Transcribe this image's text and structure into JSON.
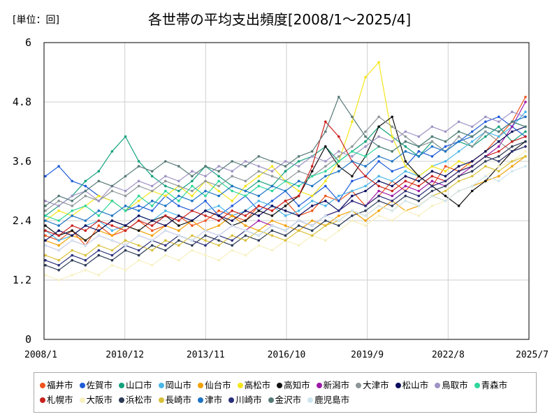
{
  "header": {
    "unit": "[単位：回]"
  },
  "chart_data": {
    "type": "line",
    "title": "各世帯の平均支出頻度[2008/1～2025/4]",
    "xlabel": "",
    "ylabel": "",
    "ylim": [
      0,
      6
    ],
    "yticks": [
      "0",
      "1.2",
      "2.4",
      "3.6",
      "4.8",
      "6"
    ],
    "xticks": [
      "2008/1",
      "2010/12",
      "2013/11",
      "2016/10",
      "2019/9",
      "2022/8",
      "2025/7"
    ],
    "x_start": "2008/1",
    "x_end": "2025/4",
    "grid": true,
    "legend_position": "bottom",
    "series": [
      {
        "name": "福井市",
        "color": "#f0541d",
        "values": [
          2.1,
          2.0,
          2.2,
          1.9,
          2.3,
          2.1,
          2.2,
          2.4,
          2.2,
          2.3,
          2.5,
          2.3,
          2.4,
          2.6,
          2.5,
          2.4,
          2.7,
          2.6,
          2.8,
          2.5,
          2.6,
          2.9,
          2.8,
          3.0,
          2.7,
          2.9,
          3.2,
          3.0,
          3.3,
          3.1,
          3.5,
          3.4,
          3.6,
          3.8,
          4.1,
          4.4,
          4.9
        ]
      },
      {
        "name": "佐賀市",
        "color": "#1f5bd8",
        "values": [
          3.3,
          3.5,
          3.2,
          3.1,
          2.9,
          2.8,
          2.6,
          2.7,
          2.6,
          2.9,
          2.7,
          2.6,
          2.8,
          2.5,
          2.7,
          2.9,
          2.6,
          2.8,
          3.0,
          2.7,
          2.9,
          3.1,
          2.8,
          3.2,
          3.3,
          3.6,
          3.4,
          3.5,
          3.8,
          3.7,
          3.9,
          4.0,
          4.2,
          4.4,
          4.5,
          4.3,
          4.1
        ]
      },
      {
        "name": "山口市",
        "color": "#14a17d",
        "values": [
          2.5,
          2.7,
          2.9,
          3.2,
          3.4,
          3.8,
          4.1,
          3.6,
          3.3,
          3.1,
          3.0,
          3.2,
          3.5,
          3.3,
          3.1,
          3.0,
          3.2,
          3.1,
          3.4,
          3.6,
          3.7,
          3.9,
          3.6,
          3.8,
          4.0,
          4.3,
          4.1,
          3.9,
          3.7,
          4.0,
          3.8,
          4.0,
          3.9,
          4.1,
          4.3,
          4.0,
          4.2
        ]
      },
      {
        "name": "岡山市",
        "color": "#4ab6e8",
        "values": [
          2.2,
          2.0,
          2.1,
          2.3,
          2.4,
          2.2,
          2.3,
          2.5,
          2.4,
          2.6,
          2.5,
          2.4,
          2.6,
          2.7,
          2.5,
          2.6,
          2.8,
          2.7,
          2.5,
          2.6,
          2.8,
          2.7,
          2.9,
          3.0,
          3.1,
          3.3,
          3.2,
          3.4,
          3.3,
          3.5,
          3.6,
          3.8,
          4.0,
          4.2,
          4.1,
          4.3,
          4.6
        ]
      },
      {
        "name": "仙台市",
        "color": "#f2a000",
        "values": [
          2.0,
          1.9,
          2.1,
          2.0,
          2.2,
          2.1,
          2.3,
          2.2,
          2.1,
          2.3,
          2.2,
          2.4,
          2.2,
          2.3,
          2.5,
          2.3,
          2.2,
          2.4,
          2.3,
          2.2,
          2.4,
          2.3,
          2.5,
          2.6,
          2.4,
          2.6,
          2.8,
          2.6,
          2.7,
          2.9,
          2.8,
          3.0,
          3.1,
          3.2,
          3.3,
          3.5,
          3.7
        ]
      },
      {
        "name": "高松市",
        "color": "#f5e51b",
        "values": [
          2.4,
          2.6,
          2.5,
          2.7,
          2.9,
          2.8,
          2.6,
          2.8,
          3.0,
          2.9,
          3.1,
          2.9,
          3.2,
          3.0,
          2.8,
          3.1,
          3.3,
          3.5,
          3.2,
          3.0,
          2.9,
          3.2,
          3.6,
          4.4,
          5.3,
          5.6,
          4.1,
          3.5,
          3.3,
          3.5,
          3.4,
          3.6,
          3.5,
          3.7,
          3.6,
          3.8,
          3.9
        ]
      },
      {
        "name": "高知市",
        "color": "#111111",
        "values": [
          2.3,
          2.1,
          2.2,
          2.0,
          2.2,
          2.4,
          2.3,
          2.2,
          2.4,
          2.5,
          2.3,
          2.4,
          2.6,
          2.5,
          2.3,
          2.4,
          2.6,
          2.5,
          2.7,
          2.9,
          3.4,
          3.9,
          3.5,
          3.3,
          3.7,
          4.3,
          4.5,
          3.6,
          3.3,
          3.1,
          2.9,
          2.7,
          3.0,
          3.2,
          3.5,
          3.8,
          4.0
        ]
      },
      {
        "name": "新潟市",
        "color": "#9b1aa8",
        "values": [
          1.9,
          1.8,
          2.0,
          1.9,
          2.1,
          2.0,
          1.9,
          2.1,
          2.0,
          2.2,
          2.1,
          2.0,
          2.2,
          2.1,
          2.3,
          2.2,
          2.4,
          2.3,
          2.2,
          2.4,
          2.3,
          2.5,
          2.6,
          2.8,
          2.7,
          3.0,
          2.9,
          3.1,
          3.0,
          3.2,
          3.1,
          3.3,
          3.5,
          3.7,
          3.9,
          4.3,
          4.8
        ]
      },
      {
        "name": "大津市",
        "color": "#8d9697",
        "values": [
          2.6,
          2.8,
          2.7,
          2.9,
          2.8,
          3.0,
          2.9,
          3.1,
          3.0,
          3.2,
          3.1,
          3.0,
          3.2,
          3.1,
          3.3,
          3.2,
          3.4,
          3.3,
          3.2,
          3.4,
          3.3,
          3.5,
          3.7,
          3.9,
          4.2,
          4.5,
          4.3,
          4.1,
          3.9,
          4.0,
          3.8,
          4.1,
          3.9,
          4.2,
          4.0,
          3.8,
          3.9
        ]
      },
      {
        "name": "松山市",
        "color": "#0a0a5c",
        "values": [
          2.0,
          2.2,
          2.1,
          2.3,
          2.2,
          2.4,
          2.3,
          2.5,
          2.4,
          2.3,
          2.5,
          2.4,
          2.6,
          2.5,
          2.4,
          2.6,
          2.5,
          2.7,
          2.6,
          2.5,
          2.7,
          2.8,
          2.6,
          2.9,
          3.0,
          3.2,
          3.1,
          3.3,
          3.2,
          3.4,
          3.3,
          3.5,
          3.6,
          3.8,
          4.0,
          4.2,
          4.3
        ]
      },
      {
        "name": "鳥取市",
        "color": "#9e92c4",
        "values": [
          2.8,
          2.7,
          2.9,
          3.0,
          2.8,
          3.1,
          3.0,
          3.2,
          3.1,
          3.3,
          3.2,
          3.4,
          3.3,
          3.5,
          3.4,
          3.6,
          3.5,
          3.4,
          3.6,
          3.5,
          3.7,
          3.6,
          3.8,
          3.7,
          3.9,
          4.1,
          4.0,
          4.2,
          4.1,
          4.3,
          4.2,
          4.4,
          4.3,
          4.5,
          4.4,
          4.6,
          4.5
        ]
      },
      {
        "name": "青森市",
        "color": "#2ed69a",
        "values": [
          2.5,
          2.4,
          2.6,
          2.7,
          2.5,
          2.8,
          2.6,
          2.9,
          2.7,
          3.0,
          2.8,
          3.1,
          2.9,
          3.2,
          3.0,
          2.9,
          3.1,
          3.0,
          3.2,
          3.1,
          3.3,
          3.4,
          3.6,
          3.8,
          3.7,
          3.9,
          3.8,
          4.0,
          3.9,
          4.1,
          4.0,
          4.2,
          4.1,
          4.3,
          4.2,
          4.4,
          4.3
        ]
      },
      {
        "name": "札幌市",
        "color": "#c9211e",
        "values": [
          2.2,
          2.1,
          2.3,
          2.2,
          2.4,
          2.3,
          2.2,
          2.4,
          2.3,
          2.5,
          2.4,
          2.6,
          2.5,
          2.4,
          2.6,
          2.5,
          2.7,
          2.6,
          2.8,
          2.9,
          3.5,
          4.4,
          4.1,
          3.6,
          3.3,
          3.1,
          3.0,
          3.2,
          3.1,
          3.3,
          3.2,
          3.4,
          3.5,
          3.7,
          3.8,
          4.0,
          4.1
        ]
      },
      {
        "name": "大阪市",
        "color": "#f7f0bf",
        "values": [
          1.3,
          1.2,
          1.3,
          1.4,
          1.3,
          1.5,
          1.4,
          1.6,
          1.5,
          1.7,
          1.6,
          1.8,
          1.7,
          1.6,
          1.8,
          1.7,
          1.9,
          1.8,
          2.0,
          1.9,
          2.1,
          2.0,
          2.2,
          2.4,
          2.3,
          2.5,
          2.4,
          2.6,
          2.5,
          2.7,
          2.8,
          3.0,
          3.1,
          3.3,
          3.5,
          3.6,
          3.8
        ]
      },
      {
        "name": "浜松市",
        "color": "#2b3a55",
        "values": [
          1.5,
          1.4,
          1.6,
          1.5,
          1.7,
          1.6,
          1.8,
          1.7,
          1.9,
          1.8,
          2.0,
          1.9,
          2.1,
          2.0,
          1.9,
          2.1,
          2.0,
          2.2,
          2.1,
          2.3,
          2.2,
          2.4,
          2.3,
          2.5,
          2.6,
          2.8,
          2.7,
          2.9,
          2.8,
          3.0,
          3.1,
          3.3,
          3.4,
          3.6,
          3.7,
          3.9,
          4.0
        ]
      },
      {
        "name": "長崎市",
        "color": "#d9c03a",
        "values": [
          1.7,
          1.6,
          1.8,
          1.7,
          1.9,
          1.8,
          2.0,
          1.9,
          1.8,
          2.0,
          1.9,
          2.1,
          2.0,
          1.9,
          2.1,
          2.0,
          2.2,
          2.1,
          2.0,
          2.2,
          2.1,
          2.3,
          2.4,
          2.6,
          2.5,
          2.7,
          2.6,
          2.8,
          2.7,
          2.9,
          3.0,
          3.2,
          3.3,
          3.5,
          3.4,
          3.6,
          3.7
        ]
      },
      {
        "name": "津市",
        "color": "#1c73c4",
        "values": [
          2.4,
          2.3,
          2.5,
          2.4,
          2.6,
          2.5,
          2.7,
          2.6,
          2.8,
          2.7,
          2.9,
          2.8,
          3.0,
          2.9,
          3.1,
          3.0,
          2.9,
          3.1,
          3.0,
          3.2,
          3.1,
          3.3,
          3.4,
          3.6,
          3.5,
          3.7,
          3.6,
          3.8,
          3.7,
          3.9,
          3.8,
          4.0,
          4.1,
          4.3,
          4.2,
          4.4,
          4.5
        ]
      },
      {
        "name": "川崎市",
        "color": "#2a2f7a",
        "values": [
          1.6,
          1.5,
          1.7,
          1.6,
          1.8,
          1.7,
          1.9,
          1.8,
          2.0,
          1.9,
          2.1,
          2.0,
          1.9,
          2.1,
          2.0,
          2.2,
          2.1,
          2.3,
          2.2,
          2.4,
          2.3,
          2.5,
          2.6,
          2.8,
          2.7,
          2.9,
          2.8,
          3.0,
          2.9,
          3.1,
          3.2,
          3.4,
          3.5,
          3.7,
          3.6,
          3.8,
          3.9
        ]
      },
      {
        "name": "金沢市",
        "color": "#567a78",
        "values": [
          2.7,
          2.9,
          2.8,
          3.0,
          3.2,
          3.1,
          3.3,
          3.5,
          3.4,
          3.6,
          3.5,
          3.3,
          3.5,
          3.4,
          3.6,
          3.5,
          3.7,
          3.6,
          3.5,
          3.7,
          3.8,
          4.2,
          4.9,
          4.5,
          4.1,
          3.9,
          3.8,
          4.0,
          3.9,
          4.1,
          4.0,
          4.2,
          4.1,
          4.3,
          4.2,
          4.4,
          4.3
        ]
      },
      {
        "name": "鹿児島市",
        "color": "#cfe6f0",
        "values": [
          1.9,
          1.8,
          2.0,
          1.9,
          2.1,
          2.0,
          1.9,
          2.1,
          2.0,
          2.2,
          2.1,
          2.0,
          2.2,
          2.1,
          2.3,
          2.2,
          2.1,
          2.3,
          2.2,
          2.4,
          2.3,
          2.5,
          2.4,
          2.6,
          2.5,
          2.7,
          2.6,
          2.8,
          2.7,
          2.9,
          2.8,
          3.0,
          3.1,
          3.3,
          3.2,
          3.4,
          3.5
        ]
      }
    ]
  }
}
